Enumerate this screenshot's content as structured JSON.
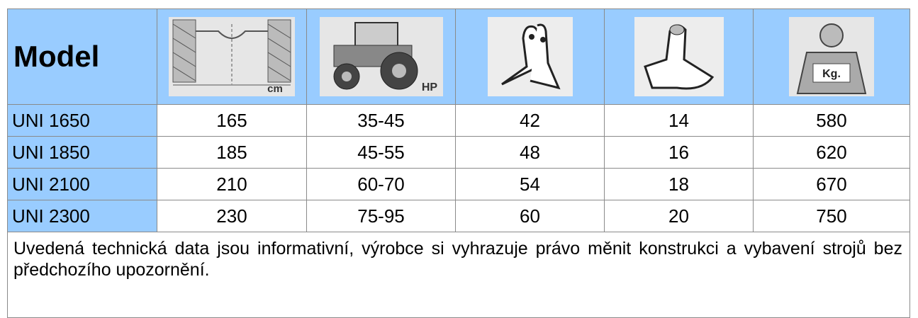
{
  "table": {
    "header": {
      "model": "Model",
      "width_unit": "cm",
      "power_unit": "HP"
    },
    "rows": [
      [
        "UNI 1650",
        165,
        "35-45",
        42,
        14,
        580
      ],
      [
        "UNI 1850",
        185,
        "45-55",
        48,
        16,
        620
      ],
      [
        "UNI 2100",
        210,
        "60-70",
        54,
        18,
        670
      ],
      [
        "UNI 2300",
        230,
        "75-95",
        60,
        20,
        750
      ]
    ]
  },
  "note": "Uvedená technická data jsou informativní, výrobce si vyhrazuje právo měnit konstrukci a vybavení strojů bez předchozího upozornění."
}
